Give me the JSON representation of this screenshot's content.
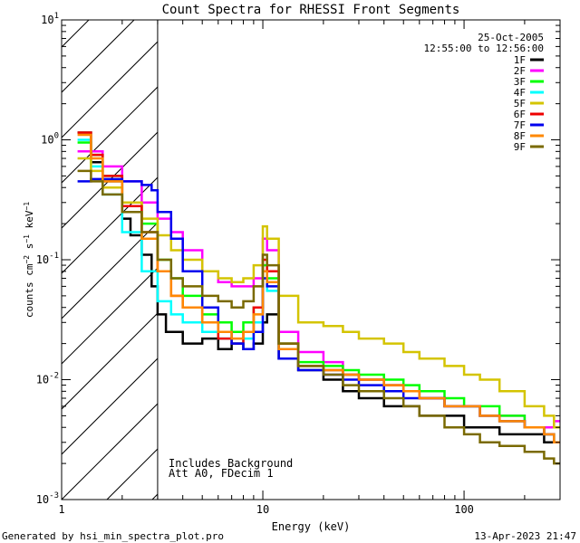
{
  "chart_data": {
    "type": "line",
    "title": "Count Spectra for RHESSI Front Segments",
    "xlabel": "Energy (keV)",
    "ylabel_parts": [
      "counts cm",
      "−2",
      " s",
      "−1",
      " keV",
      "−1"
    ],
    "x_scale": "log",
    "y_scale": "log",
    "xlim": [
      1,
      300
    ],
    "ylim": [
      0.001,
      10
    ],
    "x_ticks": [
      {
        "value": 1,
        "label": "1"
      },
      {
        "value": 10,
        "label": "10"
      },
      {
        "value": 100,
        "label": "100"
      }
    ],
    "y_ticks": [
      {
        "value": 0.001,
        "base": "10",
        "exp": "-3"
      },
      {
        "value": 0.01,
        "base": "10",
        "exp": "-2"
      },
      {
        "value": 0.1,
        "base": "10",
        "exp": "-1"
      },
      {
        "value": 1,
        "base": "10",
        "exp": "0"
      },
      {
        "value": 10,
        "base": "10",
        "exp": "1"
      }
    ],
    "hatched_region": [
      1,
      3
    ],
    "date": "25-Oct-2005",
    "time_range": "12:55:00 to 12:56:00",
    "annotations": [
      "Includes Background",
      "Att A0, FDecim 1"
    ],
    "series": [
      {
        "name": "1F",
        "color": "#000000",
        "x": [
          1.2,
          1.4,
          1.6,
          2.0,
          2.2,
          2.5,
          2.8,
          3.0,
          3.3,
          4.0,
          5.0,
          6.0,
          7.0,
          8.0,
          9.0,
          10.0,
          10.5,
          12,
          15,
          20,
          25,
          30,
          40,
          50,
          60,
          80,
          100,
          120,
          150,
          200,
          250,
          280
        ],
        "y": [
          1.15,
          0.65,
          0.45,
          0.22,
          0.16,
          0.11,
          0.06,
          0.035,
          0.025,
          0.02,
          0.022,
          0.018,
          0.02,
          0.018,
          0.02,
          0.03,
          0.035,
          0.015,
          0.012,
          0.01,
          0.008,
          0.007,
          0.006,
          0.006,
          0.005,
          0.005,
          0.004,
          0.004,
          0.0035,
          0.0035,
          0.003,
          0.003
        ]
      },
      {
        "name": "2F",
        "color": "#ff00ff",
        "x": [
          1.2,
          1.4,
          1.6,
          2.0,
          2.5,
          3.0,
          3.5,
          4.0,
          5.0,
          6.0,
          7.0,
          8.0,
          9.0,
          10.0,
          10.5,
          12,
          15,
          20,
          25,
          30,
          40,
          50,
          60,
          80,
          100,
          120,
          150,
          200,
          250,
          280
        ],
        "y": [
          0.8,
          0.8,
          0.6,
          0.45,
          0.3,
          0.22,
          0.17,
          0.12,
          0.08,
          0.065,
          0.06,
          0.06,
          0.07,
          0.15,
          0.12,
          0.025,
          0.017,
          0.014,
          0.011,
          0.01,
          0.009,
          0.008,
          0.007,
          0.006,
          0.006,
          0.005,
          0.005,
          0.004,
          0.004,
          0.0045
        ]
      },
      {
        "name": "3F",
        "color": "#00ff00",
        "x": [
          1.2,
          1.4,
          1.6,
          2.0,
          2.5,
          3.0,
          3.5,
          4.0,
          5.0,
          6.0,
          7.0,
          8.0,
          9.0,
          10.0,
          10.5,
          12,
          15,
          20,
          25,
          30,
          40,
          50,
          60,
          80,
          100,
          120,
          150,
          200,
          250,
          280
        ],
        "y": [
          0.95,
          0.75,
          0.5,
          0.3,
          0.2,
          0.1,
          0.07,
          0.05,
          0.035,
          0.03,
          0.025,
          0.03,
          0.04,
          0.09,
          0.07,
          0.02,
          0.014,
          0.013,
          0.012,
          0.011,
          0.01,
          0.009,
          0.008,
          0.007,
          0.006,
          0.006,
          0.005,
          0.004,
          0.0035,
          0.003
        ]
      },
      {
        "name": "4F",
        "color": "#00ffff",
        "x": [
          1.2,
          1.4,
          1.6,
          2.0,
          2.5,
          3.0,
          3.5,
          4.0,
          5.0,
          6.0,
          7.0,
          8.0,
          9.0,
          10.0,
          10.5,
          12,
          15,
          20,
          25,
          30,
          40,
          50,
          60,
          80,
          100,
          120,
          150,
          200,
          250,
          280
        ],
        "y": [
          1.0,
          0.6,
          0.35,
          0.17,
          0.08,
          0.045,
          0.035,
          0.03,
          0.025,
          0.022,
          0.02,
          0.022,
          0.03,
          0.07,
          0.055,
          0.018,
          0.013,
          0.012,
          0.011,
          0.01,
          0.009,
          0.008,
          0.007,
          0.006,
          0.006,
          0.005,
          0.0045,
          0.004,
          0.0035,
          0.003
        ]
      },
      {
        "name": "5F",
        "color": "#d4c400",
        "x": [
          1.2,
          1.4,
          1.6,
          2.0,
          2.5,
          3.0,
          3.5,
          4.0,
          5.0,
          6.0,
          7.0,
          8.0,
          9.0,
          10.0,
          10.5,
          12,
          15,
          20,
          25,
          30,
          40,
          50,
          60,
          80,
          100,
          120,
          150,
          200,
          250,
          280
        ],
        "y": [
          0.7,
          0.55,
          0.4,
          0.3,
          0.22,
          0.16,
          0.12,
          0.1,
          0.08,
          0.07,
          0.065,
          0.07,
          0.09,
          0.19,
          0.15,
          0.05,
          0.03,
          0.028,
          0.025,
          0.022,
          0.02,
          0.017,
          0.015,
          0.013,
          0.011,
          0.01,
          0.008,
          0.006,
          0.005,
          0.004
        ]
      },
      {
        "name": "6F",
        "color": "#ee0000",
        "x": [
          1.2,
          1.4,
          1.6,
          2.0,
          2.5,
          3.0,
          3.5,
          4.0,
          5.0,
          6.0,
          7.0,
          8.0,
          9.0,
          10.0,
          10.5,
          12,
          15,
          20,
          25,
          30,
          40,
          50,
          60,
          80,
          100,
          120,
          150,
          200,
          250,
          280
        ],
        "y": [
          1.15,
          0.75,
          0.5,
          0.28,
          0.17,
          0.08,
          0.05,
          0.04,
          0.03,
          0.022,
          0.02,
          0.025,
          0.04,
          0.1,
          0.08,
          0.02,
          0.013,
          0.012,
          0.011,
          0.01,
          0.009,
          0.008,
          0.007,
          0.006,
          0.006,
          0.005,
          0.0045,
          0.004,
          0.0035,
          0.003
        ]
      },
      {
        "name": "7F",
        "color": "#0000ee",
        "x": [
          1.2,
          1.4,
          1.6,
          2.0,
          2.5,
          2.8,
          3.0,
          3.5,
          4.0,
          5.0,
          6.0,
          7.0,
          8.0,
          9.0,
          10.0,
          10.5,
          12,
          15,
          20,
          25,
          30,
          40,
          50,
          60,
          80,
          100,
          120,
          150,
          200,
          250,
          280
        ],
        "y": [
          0.45,
          0.47,
          0.47,
          0.45,
          0.42,
          0.38,
          0.25,
          0.15,
          0.08,
          0.04,
          0.025,
          0.02,
          0.018,
          0.025,
          0.07,
          0.06,
          0.015,
          0.012,
          0.011,
          0.01,
          0.009,
          0.008,
          0.007,
          0.007,
          0.006,
          0.006,
          0.005,
          0.0045,
          0.004,
          0.0035,
          0.003
        ]
      },
      {
        "name": "8F",
        "color": "#ff8800",
        "x": [
          1.2,
          1.4,
          1.6,
          2.0,
          2.5,
          3.0,
          3.5,
          4.0,
          5.0,
          6.0,
          7.0,
          8.0,
          9.0,
          10.0,
          10.5,
          12,
          15,
          20,
          25,
          30,
          40,
          50,
          60,
          80,
          100,
          120,
          150,
          200,
          250,
          280
        ],
        "y": [
          1.1,
          0.7,
          0.45,
          0.25,
          0.15,
          0.08,
          0.05,
          0.04,
          0.03,
          0.025,
          0.022,
          0.025,
          0.035,
          0.08,
          0.065,
          0.018,
          0.013,
          0.012,
          0.011,
          0.01,
          0.009,
          0.008,
          0.007,
          0.006,
          0.006,
          0.005,
          0.0045,
          0.004,
          0.0035,
          0.003
        ]
      },
      {
        "name": "9F",
        "color": "#7a6a00",
        "x": [
          1.2,
          1.4,
          1.6,
          2.0,
          2.5,
          3.0,
          3.5,
          4.0,
          5.0,
          6.0,
          7.0,
          8.0,
          9.0,
          10.0,
          10.5,
          12,
          15,
          20,
          25,
          30,
          40,
          50,
          60,
          80,
          100,
          120,
          150,
          200,
          250,
          280
        ],
        "y": [
          0.55,
          0.45,
          0.35,
          0.25,
          0.17,
          0.1,
          0.07,
          0.06,
          0.05,
          0.045,
          0.04,
          0.045,
          0.06,
          0.11,
          0.09,
          0.02,
          0.013,
          0.011,
          0.009,
          0.008,
          0.007,
          0.006,
          0.005,
          0.004,
          0.0035,
          0.003,
          0.0028,
          0.0025,
          0.0022,
          0.002
        ]
      }
    ]
  },
  "footer": {
    "generated_by": "Generated by hsi_min_spectra_plot.pro",
    "timestamp": "13-Apr-2023 21:47"
  }
}
